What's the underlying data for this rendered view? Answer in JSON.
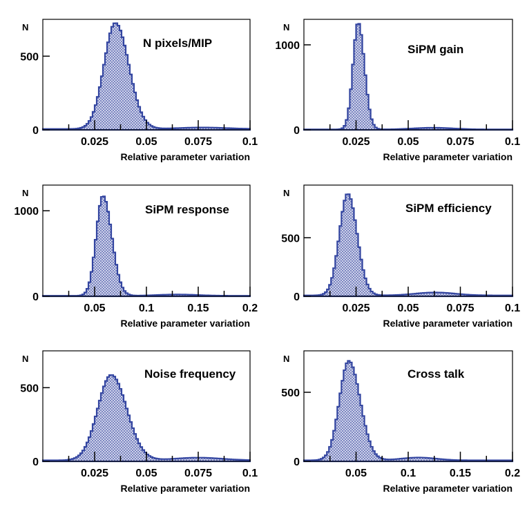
{
  "colors": {
    "line": "#3345a0",
    "fill": "#9aa3cf",
    "axis": "#000000"
  },
  "chart_data": [
    {
      "type": "histogram",
      "title": "N pixels/MIP",
      "xlabel": "Relative parameter variation",
      "ylabel": "N",
      "xlim": [
        0,
        0.1
      ],
      "ylim": [
        0,
        750
      ],
      "xticks": [
        0.025,
        0.05,
        0.075,
        0.1
      ],
      "xticklabels": [
        "0.025",
        "0.05",
        "0.075",
        "0.1"
      ],
      "yticks": [
        0,
        500
      ],
      "yticklabels": [
        "0",
        "500"
      ],
      "shape": {
        "peak_x": 0.035,
        "peak_y": 720,
        "sigma_left": 0.0055,
        "sigma_right": 0.0065,
        "tail_level": 12,
        "tail_bump_x": 0.077,
        "tail_bump_y": 10
      }
    },
    {
      "type": "histogram",
      "title": "SiPM gain",
      "xlabel": "Relative parameter variation",
      "ylabel": "N",
      "xlim": [
        0,
        0.1
      ],
      "ylim": [
        0,
        1300
      ],
      "xticks": [
        0.025,
        0.05,
        0.075,
        0.1
      ],
      "xticklabels": [
        "0.025",
        "0.05",
        "0.075",
        "0.1"
      ],
      "yticks": [
        0,
        1000
      ],
      "yticklabels": [
        "0",
        "1000"
      ],
      "shape": {
        "peak_x": 0.026,
        "peak_y": 1260,
        "sigma_left": 0.0025,
        "sigma_right": 0.003,
        "tail_level": 10,
        "tail_bump_x": 0.062,
        "tail_bump_y": 20
      }
    },
    {
      "type": "histogram",
      "title": "SiPM response",
      "xlabel": "Relative parameter variation",
      "ylabel": "N",
      "xlim": [
        0,
        0.2
      ],
      "ylim": [
        0,
        1300
      ],
      "xticks": [
        0.05,
        0.1,
        0.15,
        0.2
      ],
      "xticklabels": [
        "0.05",
        "0.1",
        "0.15",
        "0.2"
      ],
      "yticks": [
        0,
        1000
      ],
      "yticklabels": [
        "0",
        "1000"
      ],
      "shape": {
        "peak_x": 0.058,
        "peak_y": 1170,
        "sigma_left": 0.0065,
        "sigma_right": 0.0085,
        "tail_level": 12,
        "tail_bump_x": 0.13,
        "tail_bump_y": 15
      }
    },
    {
      "type": "histogram",
      "title": "SiPM efficiency",
      "xlabel": "Relative parameter variation",
      "ylabel": "N",
      "xlim": [
        0,
        0.1
      ],
      "ylim": [
        0,
        950
      ],
      "xticks": [
        0.025,
        0.05,
        0.075,
        0.1
      ],
      "xticklabels": [
        "0.025",
        "0.05",
        "0.075",
        "0.1"
      ],
      "yticks": [
        0,
        500
      ],
      "yticklabels": [
        "0",
        "500"
      ],
      "shape": {
        "peak_x": 0.021,
        "peak_y": 870,
        "sigma_left": 0.004,
        "sigma_right": 0.0045,
        "tail_level": 15,
        "tail_bump_x": 0.063,
        "tail_bump_y": 25
      }
    },
    {
      "type": "histogram",
      "title": "Noise frequency",
      "xlabel": "Relative parameter variation",
      "ylabel": "N",
      "xlim": [
        0,
        0.1
      ],
      "ylim": [
        0,
        750
      ],
      "xticks": [
        0.025,
        0.05,
        0.075,
        0.1
      ],
      "xticklabels": [
        "0.025",
        "0.05",
        "0.075",
        "0.1"
      ],
      "yticks": [
        0,
        500
      ],
      "yticklabels": [
        "0",
        "500"
      ],
      "shape": {
        "peak_x": 0.033,
        "peak_y": 580,
        "sigma_left": 0.0065,
        "sigma_right": 0.0075,
        "tail_level": 14,
        "tail_bump_x": 0.075,
        "tail_bump_y": 18
      }
    },
    {
      "type": "histogram",
      "title": "Cross talk",
      "xlabel": "Relative parameter variation",
      "ylabel": "N",
      "xlim": [
        0,
        0.2
      ],
      "ylim": [
        0,
        800
      ],
      "xticks": [
        0.05,
        0.1,
        0.15,
        0.2
      ],
      "xticklabels": [
        "0.05",
        "0.1",
        "0.15",
        "0.2"
      ],
      "yticks": [
        0,
        500
      ],
      "yticklabels": [
        "0",
        "500"
      ],
      "shape": {
        "peak_x": 0.043,
        "peak_y": 720,
        "sigma_left": 0.009,
        "sigma_right": 0.011,
        "tail_level": 15,
        "tail_bump_x": 0.11,
        "tail_bump_y": 20
      }
    }
  ]
}
